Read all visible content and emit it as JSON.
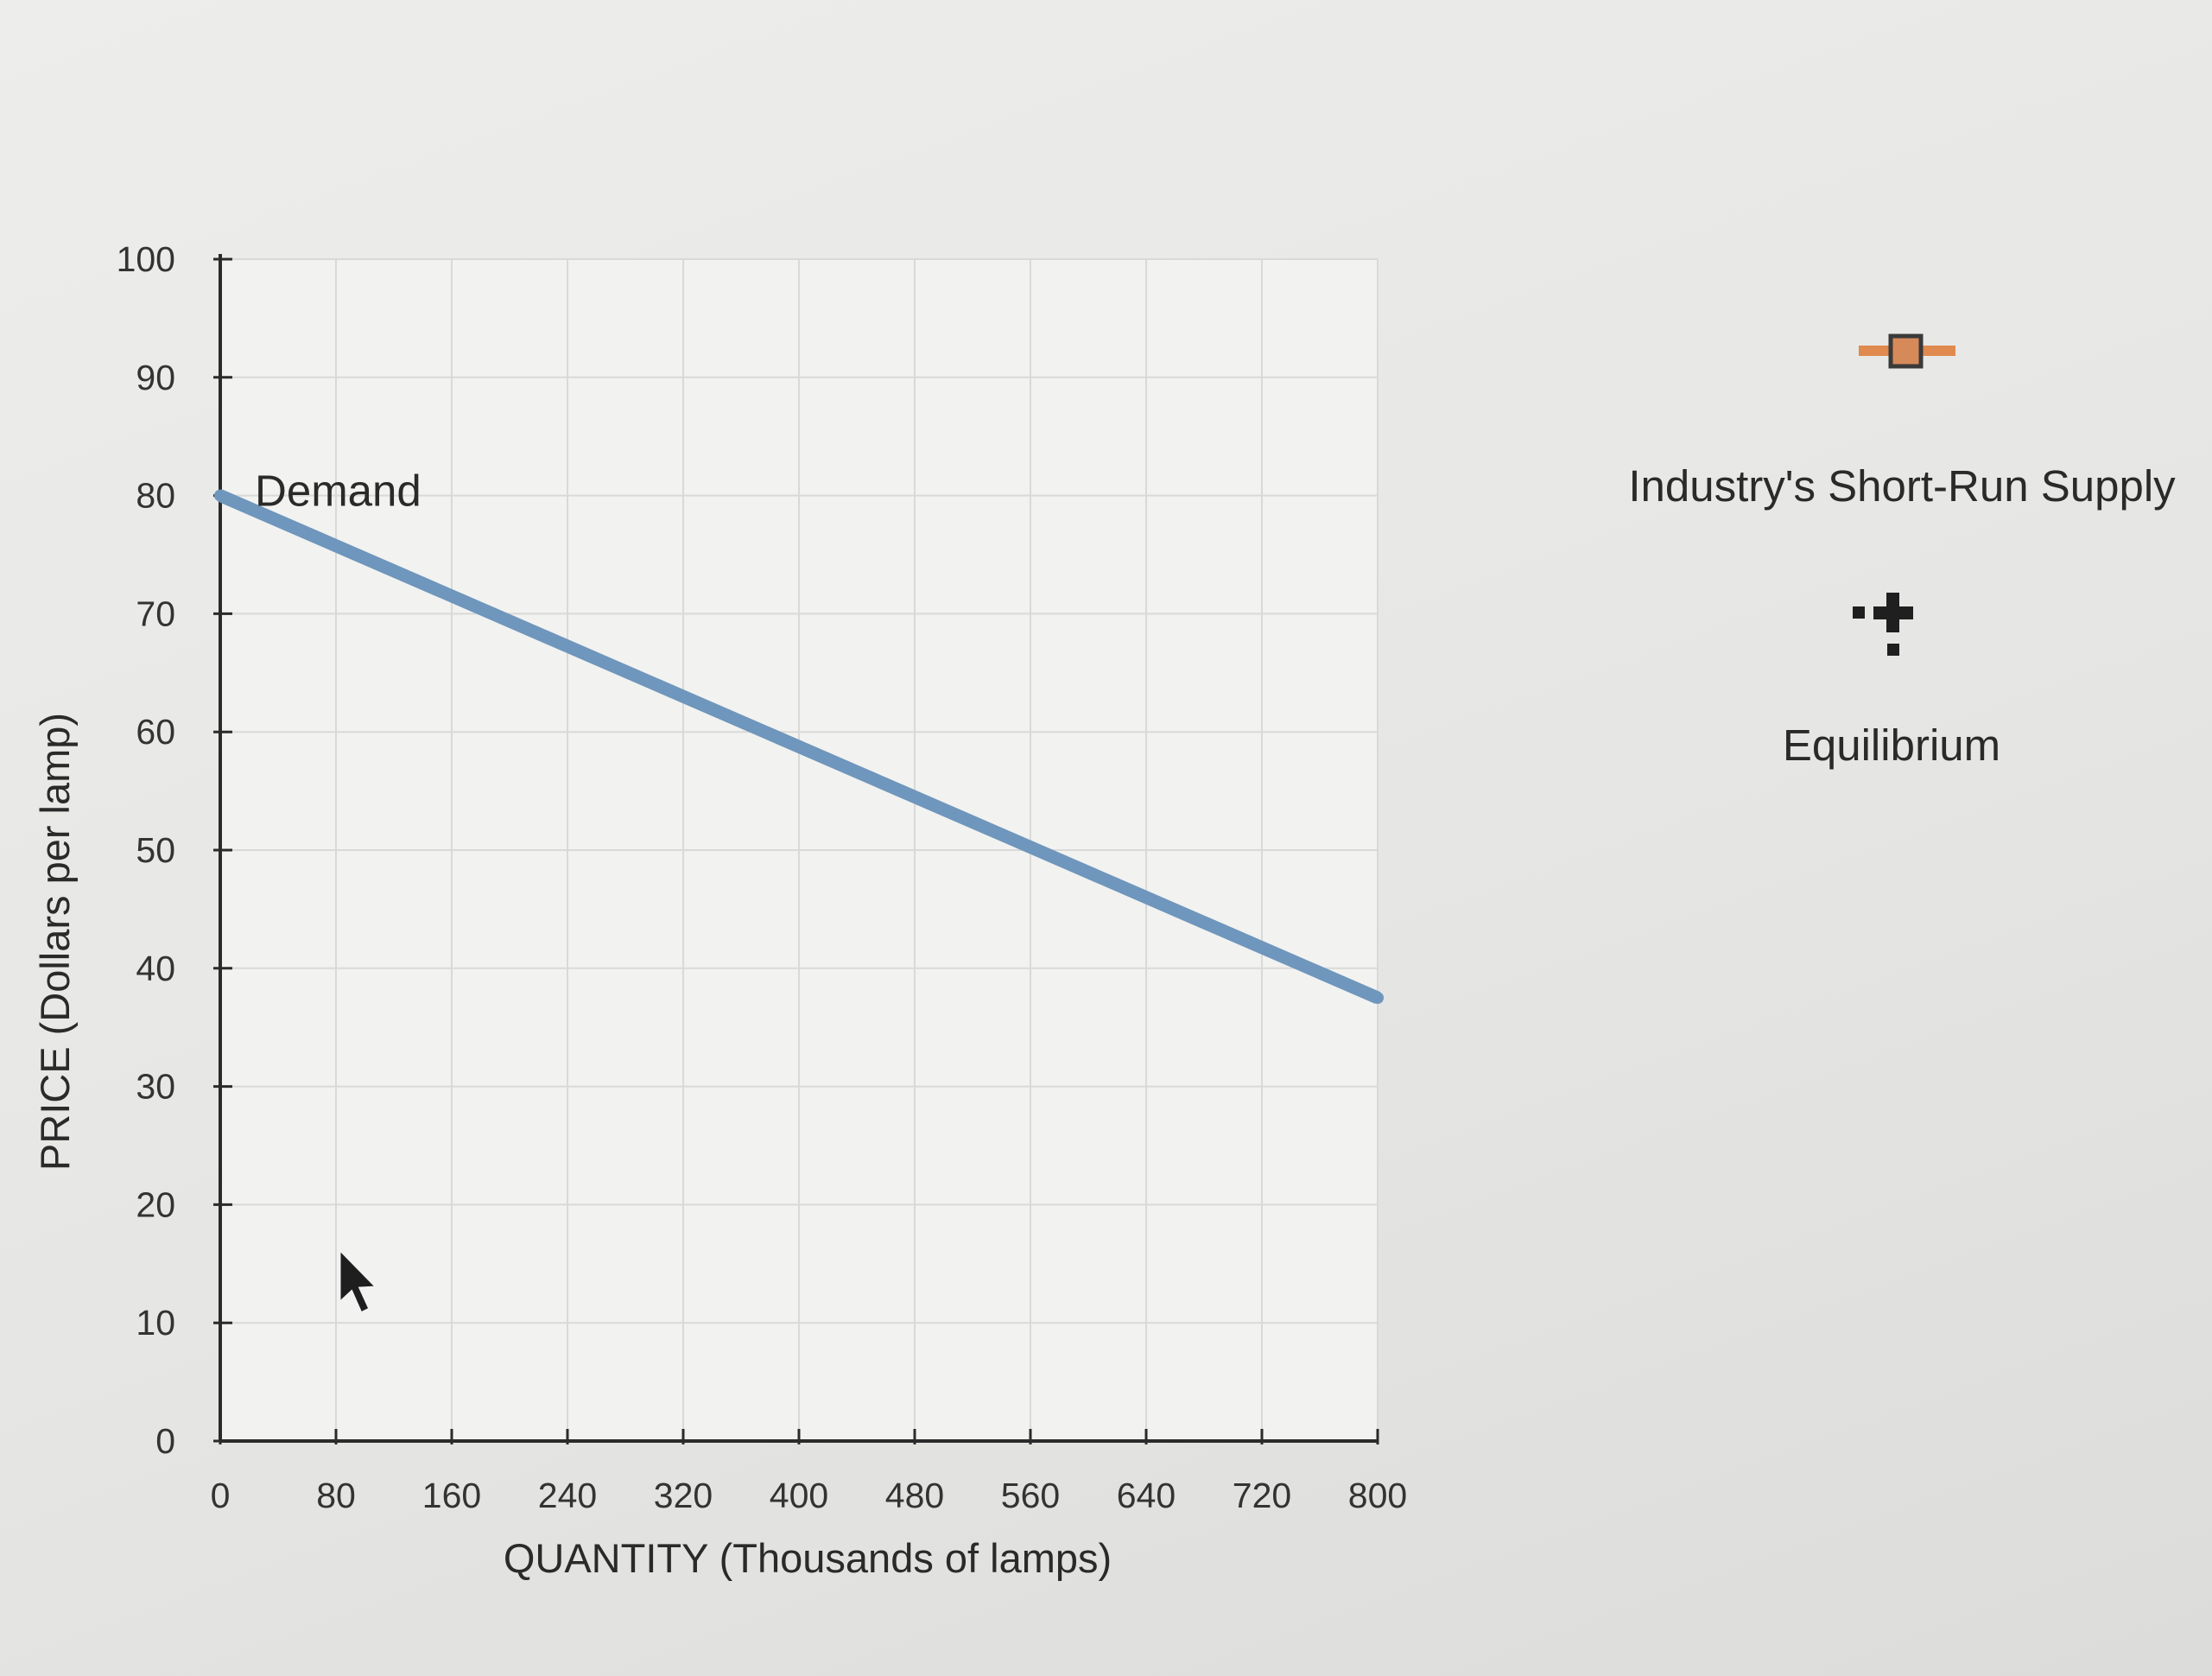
{
  "chart_data": {
    "type": "line",
    "title": "",
    "xlabel": "QUANTITY (Thousands of lamps)",
    "ylabel": "PRICE (Dollars per lamp)",
    "xlim": [
      0,
      800
    ],
    "ylim": [
      0,
      100
    ],
    "x_ticks": [
      0,
      80,
      160,
      240,
      320,
      400,
      480,
      560,
      640,
      720,
      800
    ],
    "y_ticks": [
      0,
      10,
      20,
      30,
      40,
      50,
      60,
      70,
      80,
      90,
      100
    ],
    "grid": true,
    "series": [
      {
        "name": "Demand",
        "color": "#6f96bc",
        "points": [
          {
            "x": 0,
            "y": 80
          },
          {
            "x": 800,
            "y": 37.5
          }
        ]
      }
    ]
  },
  "legend": {
    "placement": "right",
    "items": [
      {
        "label": "Industry's Short-Run Supply",
        "icon": "orange-square-marker-icon",
        "color": "#e08a4f"
      },
      {
        "label": "Equilibrium",
        "icon": "black-cross-marker-icon",
        "color": "#1f1f1f"
      }
    ]
  }
}
